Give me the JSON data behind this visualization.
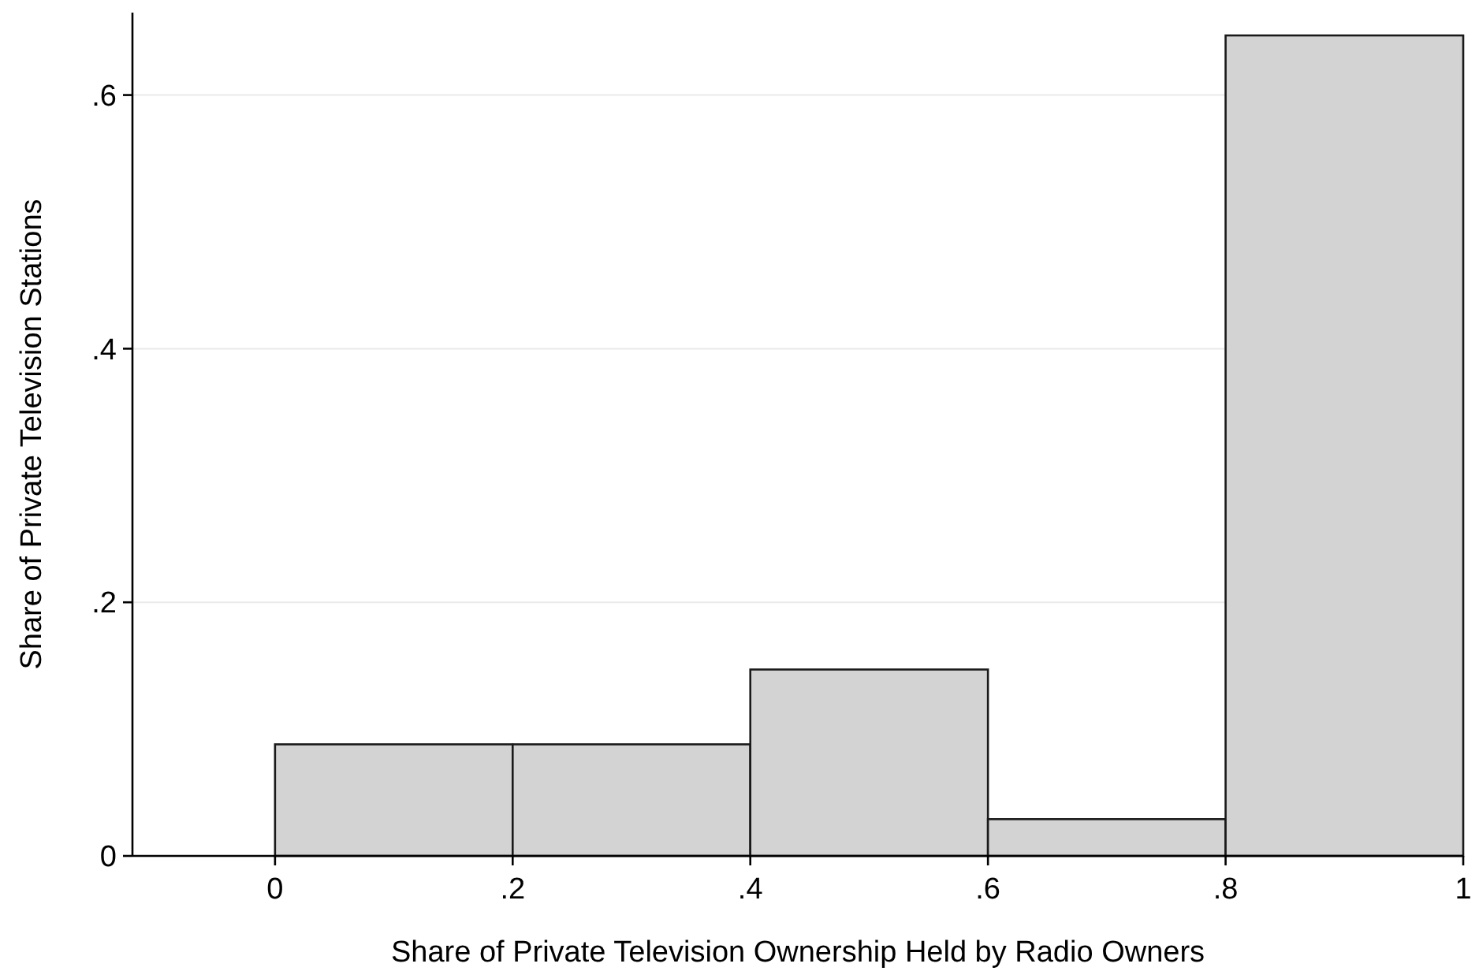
{
  "chart_data": {
    "type": "histogram",
    "xlabel": "Share of Private Television Ownership Held by Radio Owners",
    "ylabel": "Share of Private Television Stations",
    "bins": [
      0,
      0.2,
      0.4,
      0.6,
      0.8,
      1
    ],
    "values": [
      0.088,
      0.088,
      0.147,
      0.029,
      0.647
    ],
    "color": "#d3d3d3",
    "xlim": [
      -0.12,
      1
    ],
    "xticks": [
      0,
      {
        "value": 0.2,
        "label": ".2"
      },
      {
        "value": 0.4,
        "label": ".4"
      },
      {
        "value": 0.6,
        "label": ".6"
      },
      {
        "value": 0.8,
        "label": ".8"
      },
      1
    ],
    "ylim": [
      0,
      0.665
    ],
    "yticks": [
      0,
      {
        "value": 0.2,
        "label": ".2"
      },
      {
        "value": 0.4,
        "label": ".4"
      },
      {
        "value": 0.6,
        "label": ".6"
      }
    ],
    "grid": "y"
  }
}
